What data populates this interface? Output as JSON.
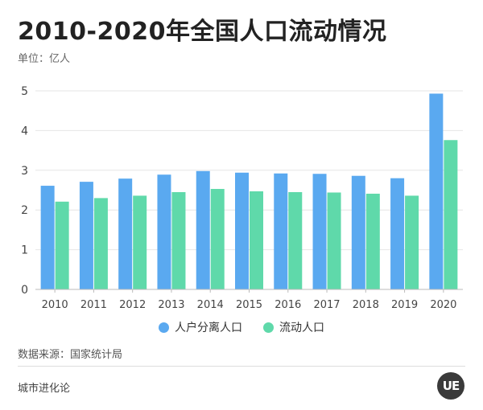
{
  "header": {
    "title": "2010-2020年全国人口流动情况",
    "unit": "单位：亿人"
  },
  "chart_data": {
    "type": "bar",
    "categories": [
      "2010",
      "2011",
      "2012",
      "2013",
      "2014",
      "2015",
      "2016",
      "2017",
      "2018",
      "2019",
      "2020"
    ],
    "series": [
      {
        "name": "人户分离人口",
        "color": "#5aa9f0",
        "values": [
          2.61,
          2.71,
          2.79,
          2.89,
          2.98,
          2.94,
          2.92,
          2.91,
          2.86,
          2.8,
          4.93
        ]
      },
      {
        "name": "流动人口",
        "color": "#5fd9aa",
        "values": [
          2.21,
          2.3,
          2.36,
          2.45,
          2.53,
          2.47,
          2.45,
          2.44,
          2.41,
          2.36,
          3.76
        ]
      }
    ],
    "yticks": [
      "0",
      "1",
      "2",
      "3",
      "4",
      "5"
    ],
    "ylim": [
      0,
      5
    ],
    "grid": true,
    "legend_position": "bottom"
  },
  "footer": {
    "source": "数据来源：国家统计局",
    "brand": "城市进化论",
    "logo_text": "UE"
  }
}
